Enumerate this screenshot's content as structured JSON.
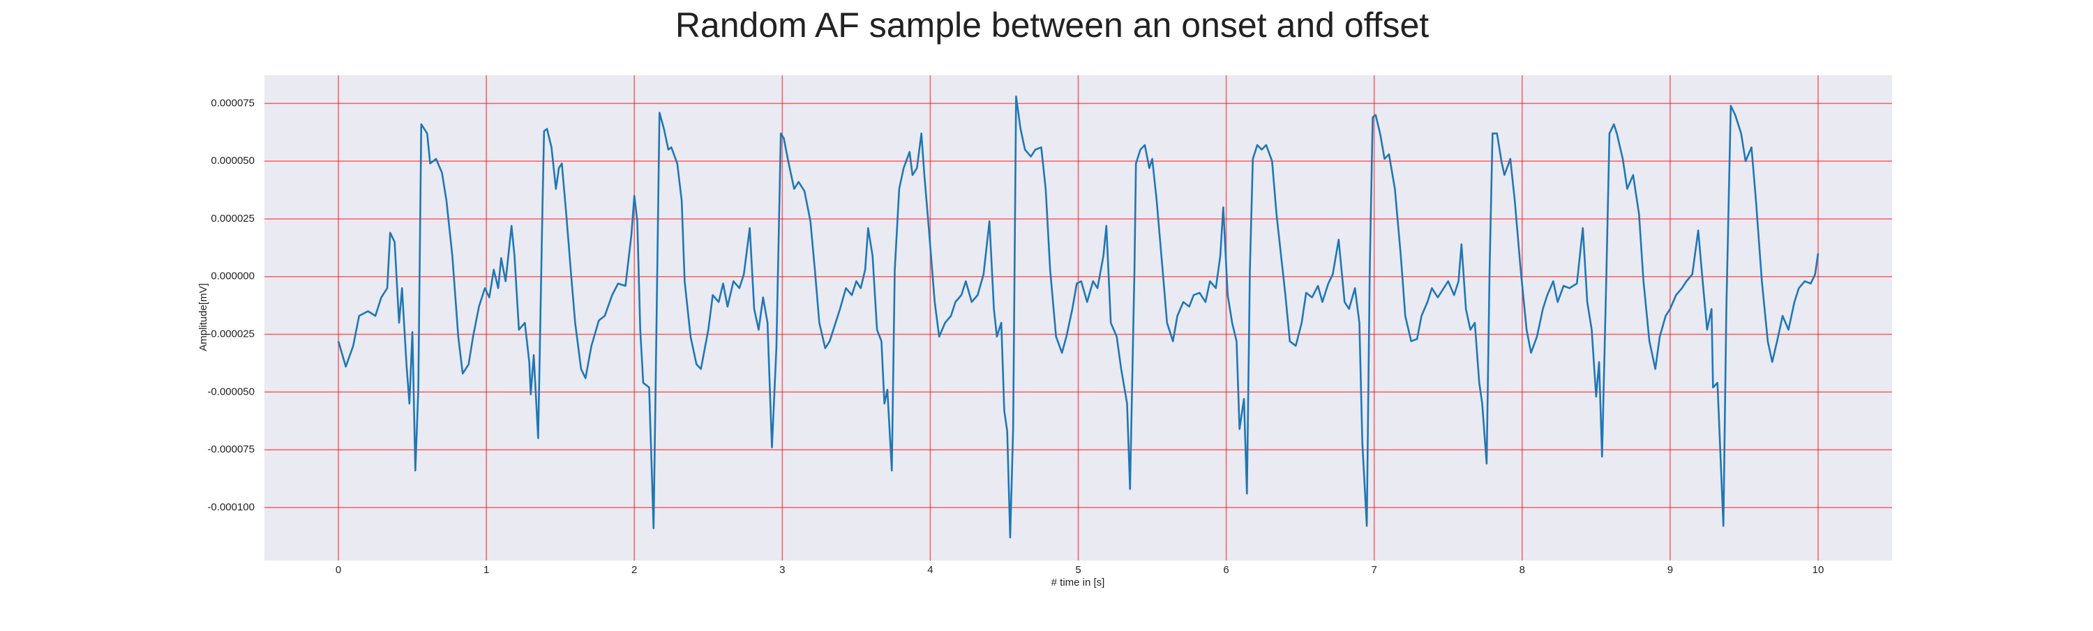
{
  "chart_data": {
    "type": "line",
    "title": "Random AF sample between an onset and offset",
    "xlabel": "# time in [s]",
    "ylabel": "Amplitude[mV]",
    "color": "#1f77b4",
    "grid": true,
    "grid_color": "#ff0000",
    "background": "#eaeaf2",
    "xlim": [
      -0.5,
      10.5
    ],
    "xticks": [
      0,
      1,
      2,
      3,
      4,
      5,
      6,
      7,
      8,
      9,
      10
    ],
    "ylim": [
      -0.000123,
      8.72e-05
    ],
    "yticks": [
      {
        "value": -0.0001,
        "label": "-0.000100"
      },
      -7.5e-05,
      {
        "value": -5e-05,
        "label": "-0.000050"
      },
      -2.5e-05,
      {
        "value": 0,
        "label": "0.000000"
      },
      2.5e-05,
      {
        "value": 5e-05,
        "label": "0.000050"
      },
      7.5e-05
    ],
    "x": [
      0,
      0.05,
      0.1,
      0.14,
      0.2,
      0.25,
      0.29,
      0.33,
      0.35,
      0.38,
      0.41,
      0.43,
      0.46,
      0.48,
      0.5,
      0.52,
      0.54,
      0.56,
      0.6,
      0.62,
      0.66,
      0.7,
      0.73,
      0.77,
      0.81,
      0.84,
      0.88,
      0.91,
      0.95,
      0.99,
      1.02,
      1.05,
      1.08,
      1.1,
      1.13,
      1.17,
      1.19,
      1.22,
      1.26,
      1.29,
      1.3,
      1.32,
      1.35,
      1.38,
      1.39,
      1.41,
      1.44,
      1.47,
      1.49,
      1.51,
      1.54,
      1.57,
      1.6,
      1.64,
      1.67,
      1.71,
      1.76,
      1.8,
      1.85,
      1.89,
      1.94,
      1.98,
      2.0,
      2.02,
      2.04,
      2.06,
      2.1,
      2.13,
      2.15,
      2.17,
      2.2,
      2.23,
      2.25,
      2.29,
      2.32,
      2.34,
      2.38,
      2.42,
      2.45,
      2.5,
      2.53,
      2.57,
      2.6,
      2.63,
      2.67,
      2.71,
      2.74,
      2.78,
      2.81,
      2.84,
      2.87,
      2.9,
      2.93,
      2.96,
      2.99,
      3.01,
      3.04,
      3.08,
      3.11,
      3.15,
      3.19,
      3.22,
      3.25,
      3.29,
      3.32,
      3.36,
      3.39,
      3.43,
      3.47,
      3.5,
      3.53,
      3.56,
      3.58,
      3.61,
      3.64,
      3.67,
      3.69,
      3.71,
      3.74,
      3.76,
      3.79,
      3.82,
      3.86,
      3.88,
      3.91,
      3.94,
      3.96,
      3.99,
      4.03,
      4.06,
      4.1,
      4.14,
      4.17,
      4.21,
      4.24,
      4.28,
      4.32,
      4.36,
      4.4,
      4.43,
      4.45,
      4.48,
      4.5,
      4.52,
      4.54,
      4.56,
      4.58,
      4.61,
      4.64,
      4.68,
      4.71,
      4.75,
      4.78,
      4.81,
      4.85,
      4.89,
      4.92,
      4.96,
      4.99,
      5.02,
      5.06,
      5.1,
      5.13,
      5.17,
      5.19,
      5.22,
      5.26,
      5.29,
      5.33,
      5.35,
      5.38,
      5.39,
      5.42,
      5.45,
      5.48,
      5.5,
      5.53,
      5.57,
      5.6,
      5.64,
      5.67,
      5.71,
      5.75,
      5.78,
      5.82,
      5.86,
      5.89,
      5.93,
      5.96,
      5.98,
      6.01,
      6.04,
      6.07,
      6.09,
      6.12,
      6.14,
      6.16,
      6.18,
      6.21,
      6.24,
      6.27,
      6.31,
      6.34,
      6.4,
      6.43,
      6.47,
      6.51,
      6.54,
      6.58,
      6.62,
      6.65,
      6.69,
      6.72,
      6.76,
      6.8,
      6.83,
      6.87,
      6.9,
      6.92,
      6.95,
      6.97,
      6.99,
      7.01,
      7.04,
      7.07,
      7.1,
      7.14,
      7.18,
      7.21,
      7.25,
      7.29,
      7.32,
      7.36,
      7.39,
      7.43,
      7.47,
      7.5,
      7.54,
      7.57,
      7.59,
      7.62,
      7.65,
      7.68,
      7.71,
      7.73,
      7.76,
      7.78,
      7.8,
      7.83,
      7.86,
      7.88,
      7.92,
      7.95,
      7.99,
      8.03,
      8.06,
      8.1,
      8.14,
      8.17,
      8.21,
      8.24,
      8.28,
      8.32,
      8.37,
      8.41,
      8.44,
      8.47,
      8.5,
      8.52,
      8.54,
      8.57,
      8.59,
      8.62,
      8.64,
      8.68,
      8.71,
      8.75,
      8.79,
      8.82,
      8.86,
      8.9,
      8.93,
      8.97,
      9.0,
      9.04,
      9.08,
      9.11,
      9.15,
      9.19,
      9.22,
      9.25,
      9.28,
      9.29,
      9.32,
      9.36,
      9.38,
      9.41,
      9.44,
      9.48,
      9.51,
      9.55,
      9.58,
      9.62,
      9.66,
      9.69,
      9.73,
      9.76,
      9.8,
      9.84,
      9.87,
      9.91,
      9.95,
      9.98,
      10.0
    ],
    "values": [
      -2.8e-05,
      -3.9e-05,
      -3e-05,
      -1.7e-05,
      -1.5e-05,
      -1.7e-05,
      -9e-06,
      -5e-06,
      1.9e-05,
      1.5e-05,
      -2e-05,
      -5e-06,
      -3.8e-05,
      -5.5e-05,
      -2.4e-05,
      -8.4e-05,
      -4.9e-05,
      6.6e-05,
      6.2e-05,
      4.9e-05,
      5.1e-05,
      4.5e-05,
      3.3e-05,
      9e-06,
      -2.6e-05,
      -4.2e-05,
      -3.8e-05,
      -2.6e-05,
      -1.3e-05,
      -5e-06,
      -9e-06,
      3e-06,
      -5e-06,
      8e-06,
      -2e-06,
      2.2e-05,
      9e-06,
      -2.3e-05,
      -2e-05,
      -3.7e-05,
      -5.1e-05,
      -3.4e-05,
      -7e-05,
      3.3e-05,
      6.3e-05,
      6.4e-05,
      5.6e-05,
      3.8e-05,
      4.7e-05,
      4.9e-05,
      2.7e-05,
      3e-06,
      -2e-05,
      -4e-05,
      -4.4e-05,
      -3e-05,
      -1.9e-05,
      -1.7e-05,
      -8e-06,
      -3e-06,
      -4e-06,
      1.8e-05,
      3.5e-05,
      2.4e-05,
      -2.3e-05,
      -4.6e-05,
      -4.8e-05,
      -0.000109,
      -2e-05,
      7.1e-05,
      6.4e-05,
      5.5e-05,
      5.6e-05,
      4.9e-05,
      3.3e-05,
      -2e-06,
      -2.6e-05,
      -3.8e-05,
      -4e-05,
      -2.3e-05,
      -8e-06,
      -1.1e-05,
      -3e-06,
      -1.3e-05,
      -2e-06,
      -5e-06,
      1e-06,
      2.1e-05,
      -1.4e-05,
      -2.3e-05,
      -9e-06,
      -2e-05,
      -7.4e-05,
      -3.1e-05,
      6.2e-05,
      6e-05,
      5e-05,
      3.8e-05,
      4.1e-05,
      3.7e-05,
      2.4e-05,
      3e-06,
      -2e-05,
      -3.1e-05,
      -2.8e-05,
      -2e-05,
      -1.4e-05,
      -5e-06,
      -8e-06,
      -2e-06,
      -5e-06,
      3e-06,
      2.1e-05,
      9e-06,
      -2.3e-05,
      -2.8e-05,
      -5.5e-05,
      -4.9e-05,
      -8.4e-05,
      3e-06,
      3.8e-05,
      4.7e-05,
      5.4e-05,
      4.4e-05,
      4.7e-05,
      6.2e-05,
      4.4e-05,
      2.1e-05,
      -1.1e-05,
      -2.6e-05,
      -2e-05,
      -1.7e-05,
      -1.1e-05,
      -8e-06,
      -2e-06,
      -1.1e-05,
      -8e-06,
      1e-06,
      2.4e-05,
      -1.4e-05,
      -2.6e-05,
      -2e-05,
      -5.8e-05,
      -6.7e-05,
      -0.000113,
      -6.6e-05,
      7.8e-05,
      6.4e-05,
      5.5e-05,
      5.2e-05,
      5.5e-05,
      5.6e-05,
      3.8e-05,
      3e-06,
      -2.6e-05,
      -3.3e-05,
      -2.6e-05,
      -1.4e-05,
      -3e-06,
      -2e-06,
      -1.1e-05,
      -2e-06,
      -5e-06,
      9e-06,
      2.2e-05,
      -2e-05,
      -2.6e-05,
      -4e-05,
      -5.5e-05,
      -9.2e-05,
      3e-06,
      4.9e-05,
      5.5e-05,
      5.7e-05,
      4.7e-05,
      5.1e-05,
      3.3e-05,
      3e-06,
      -2e-05,
      -2.8e-05,
      -1.7e-05,
      -1.1e-05,
      -1.3e-05,
      -8e-06,
      -7e-06,
      -1.1e-05,
      -2e-06,
      -5e-06,
      9e-06,
      3e-05,
      -8e-06,
      -2e-05,
      -2.8e-05,
      -6.6e-05,
      -5.3e-05,
      -9.4e-05,
      3e-06,
      5.1e-05,
      5.7e-05,
      5.5e-05,
      5.7e-05,
      5e-05,
      2.7e-05,
      -8e-06,
      -2.8e-05,
      -3e-05,
      -2e-05,
      -7e-06,
      -9e-06,
      -4e-06,
      -1.1e-05,
      -3e-06,
      1e-06,
      1.6e-05,
      -1.1e-05,
      -1.4e-05,
      -5e-06,
      -2e-05,
      -7.2e-05,
      -0.000108,
      3e-06,
      6.9e-05,
      7e-05,
      6.2e-05,
      5.1e-05,
      5.3e-05,
      3.8e-05,
      9e-06,
      -1.7e-05,
      -2.8e-05,
      -2.7e-05,
      -1.7e-05,
      -1.1e-05,
      -5e-06,
      -9e-06,
      -5e-06,
      -2e-06,
      -8e-06,
      -2e-06,
      1.4e-05,
      -1.4e-05,
      -2.3e-05,
      -2e-05,
      -4.6e-05,
      -5.5e-05,
      -8.1e-05,
      3e-06,
      6.2e-05,
      6.2e-05,
      5e-05,
      4.4e-05,
      5.1e-05,
      3.3e-05,
      3e-06,
      -2.3e-05,
      -3.3e-05,
      -2.6e-05,
      -1.4e-05,
      -8e-06,
      -2e-06,
      -1.1e-05,
      -4e-06,
      -5e-06,
      -3e-06,
      2.1e-05,
      -1.1e-05,
      -2.3e-05,
      -5.2e-05,
      -3.7e-05,
      -7.8e-05,
      3e-06,
      6.2e-05,
      6.6e-05,
      6.2e-05,
      5.1e-05,
      3.8e-05,
      4.4e-05,
      2.7e-05,
      -2e-06,
      -2.8e-05,
      -4e-05,
      -2.6e-05,
      -1.7e-05,
      -1.4e-05,
      -8e-06,
      -5e-06,
      -2e-06,
      1e-06,
      2e-05,
      -2e-06,
      -2.3e-05,
      -1.4e-05,
      -4.8e-05,
      -4.6e-05,
      -0.000108,
      -1.4e-05,
      7.4e-05,
      7e-05,
      6.2e-05,
      5e-05,
      5.6e-05,
      3.3e-05,
      -2e-06,
      -2.8e-05,
      -3.7e-05,
      -2.6e-05,
      -1.7e-05,
      -2.3e-05,
      -1.1e-05,
      -5e-06,
      -2e-06,
      -3e-06,
      1e-06,
      1e-05
    ]
  }
}
